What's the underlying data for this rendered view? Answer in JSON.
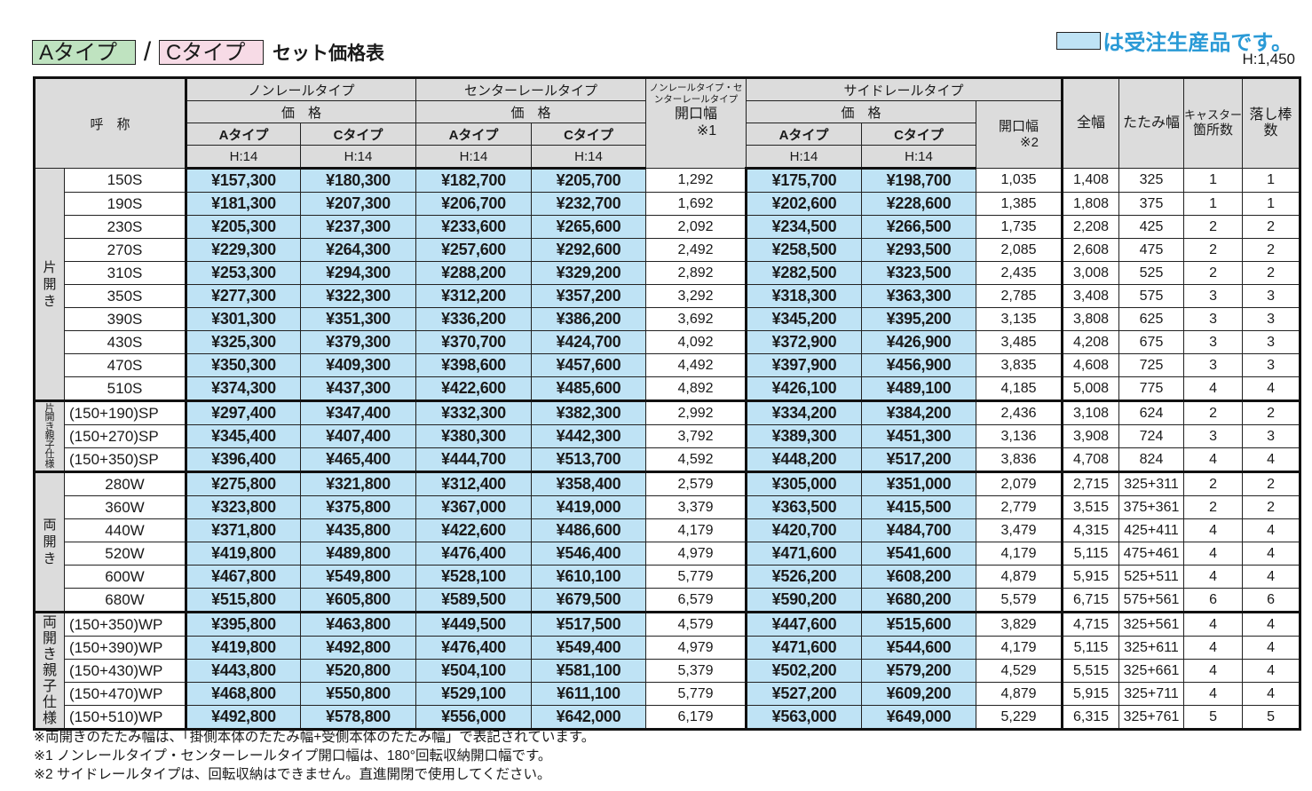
{
  "header": {
    "type_a_label": "Aタイプ",
    "slash": "/",
    "type_c_label": "Cタイプ",
    "title": "セット価格表",
    "legend_text": "は受注生産品です。",
    "height_note": "H:1,450",
    "colors": {
      "type_a_badge": "#bfe3c0",
      "type_c_badge": "#f7dbe6",
      "made_to_order": "#bfe3f5",
      "legend_text": "#2a9ad6",
      "header_bg": "#dcdcdc"
    }
  },
  "table": {
    "columns": {
      "name": "呼　称",
      "nonrail": "ノンレールタイプ",
      "center": "センターレールタイプ",
      "opening1_top": "ノンレールタイプ・センターレールタイプ",
      "opening1": "開口幅",
      "opening1_note": "※1",
      "side": "サイドレールタイプ",
      "price": "価　格",
      "type_a": "Aタイプ",
      "type_c": "Cタイプ",
      "h14": "H:14",
      "opening2": "開口幅",
      "opening2_note": "※2",
      "total_width": "全幅",
      "folded_width": "たたみ幅",
      "casters_1": "キャスター",
      "casters_2": "箇所数",
      "bars_1": "落し棒",
      "bars_2": "数"
    },
    "groups": [
      {
        "label": "片開き",
        "rows": [
          {
            "name": "150S",
            "nonA": "¥157,300",
            "nonC": "¥180,300",
            "cenA": "¥182,700",
            "cenC": "¥205,700",
            "open1": "1,292",
            "sideA": "¥175,700",
            "sideC": "¥198,700",
            "open2": "1,035",
            "total": "1,408",
            "fold": "325",
            "casters": "1",
            "bars": "1"
          },
          {
            "name": "190S",
            "nonA": "¥181,300",
            "nonC": "¥207,300",
            "cenA": "¥206,700",
            "cenC": "¥232,700",
            "open1": "1,692",
            "sideA": "¥202,600",
            "sideC": "¥228,600",
            "open2": "1,385",
            "total": "1,808",
            "fold": "375",
            "casters": "1",
            "bars": "1"
          },
          {
            "name": "230S",
            "nonA": "¥205,300",
            "nonC": "¥237,300",
            "cenA": "¥233,600",
            "cenC": "¥265,600",
            "open1": "2,092",
            "sideA": "¥234,500",
            "sideC": "¥266,500",
            "open2": "1,735",
            "total": "2,208",
            "fold": "425",
            "casters": "2",
            "bars": "2"
          },
          {
            "name": "270S",
            "nonA": "¥229,300",
            "nonC": "¥264,300",
            "cenA": "¥257,600",
            "cenC": "¥292,600",
            "open1": "2,492",
            "sideA": "¥258,500",
            "sideC": "¥293,500",
            "open2": "2,085",
            "total": "2,608",
            "fold": "475",
            "casters": "2",
            "bars": "2"
          },
          {
            "name": "310S",
            "nonA": "¥253,300",
            "nonC": "¥294,300",
            "cenA": "¥288,200",
            "cenC": "¥329,200",
            "open1": "2,892",
            "sideA": "¥282,500",
            "sideC": "¥323,500",
            "open2": "2,435",
            "total": "3,008",
            "fold": "525",
            "casters": "2",
            "bars": "2"
          },
          {
            "name": "350S",
            "nonA": "¥277,300",
            "nonC": "¥322,300",
            "cenA": "¥312,200",
            "cenC": "¥357,200",
            "open1": "3,292",
            "sideA": "¥318,300",
            "sideC": "¥363,300",
            "open2": "2,785",
            "total": "3,408",
            "fold": "575",
            "casters": "3",
            "bars": "3"
          },
          {
            "name": "390S",
            "nonA": "¥301,300",
            "nonC": "¥351,300",
            "cenA": "¥336,200",
            "cenC": "¥386,200",
            "open1": "3,692",
            "sideA": "¥345,200",
            "sideC": "¥395,200",
            "open2": "3,135",
            "total": "3,808",
            "fold": "625",
            "casters": "3",
            "bars": "3"
          },
          {
            "name": "430S",
            "nonA": "¥325,300",
            "nonC": "¥379,300",
            "cenA": "¥370,700",
            "cenC": "¥424,700",
            "open1": "4,092",
            "sideA": "¥372,900",
            "sideC": "¥426,900",
            "open2": "3,485",
            "total": "4,208",
            "fold": "675",
            "casters": "3",
            "bars": "3"
          },
          {
            "name": "470S",
            "nonA": "¥350,300",
            "nonC": "¥409,300",
            "cenA": "¥398,600",
            "cenC": "¥457,600",
            "open1": "4,492",
            "sideA": "¥397,900",
            "sideC": "¥456,900",
            "open2": "3,835",
            "total": "4,608",
            "fold": "725",
            "casters": "3",
            "bars": "3"
          },
          {
            "name": "510S",
            "nonA": "¥374,300",
            "nonC": "¥437,300",
            "cenA": "¥422,600",
            "cenC": "¥485,600",
            "open1": "4,892",
            "sideA": "¥426,100",
            "sideC": "¥489,100",
            "open2": "4,185",
            "total": "5,008",
            "fold": "775",
            "casters": "4",
            "bars": "4"
          }
        ]
      },
      {
        "label": "片開き親子仕様",
        "rows": [
          {
            "name": "(150+190)SP",
            "nonA": "¥297,400",
            "nonC": "¥347,400",
            "cenA": "¥332,300",
            "cenC": "¥382,300",
            "open1": "2,992",
            "sideA": "¥334,200",
            "sideC": "¥384,200",
            "open2": "2,436",
            "total": "3,108",
            "fold": "624",
            "casters": "2",
            "bars": "2"
          },
          {
            "name": "(150+270)SP",
            "nonA": "¥345,400",
            "nonC": "¥407,400",
            "cenA": "¥380,300",
            "cenC": "¥442,300",
            "open1": "3,792",
            "sideA": "¥389,300",
            "sideC": "¥451,300",
            "open2": "3,136",
            "total": "3,908",
            "fold": "724",
            "casters": "3",
            "bars": "3"
          },
          {
            "name": "(150+350)SP",
            "nonA": "¥396,400",
            "nonC": "¥465,400",
            "cenA": "¥444,700",
            "cenC": "¥513,700",
            "open1": "4,592",
            "sideA": "¥448,200",
            "sideC": "¥517,200",
            "open2": "3,836",
            "total": "4,708",
            "fold": "824",
            "casters": "4",
            "bars": "4"
          }
        ]
      },
      {
        "label": "両開き",
        "rows": [
          {
            "name": "280W",
            "nonA": "¥275,800",
            "nonC": "¥321,800",
            "cenA": "¥312,400",
            "cenC": "¥358,400",
            "open1": "2,579",
            "sideA": "¥305,000",
            "sideC": "¥351,000",
            "open2": "2,079",
            "total": "2,715",
            "fold": "325+311",
            "casters": "2",
            "bars": "2"
          },
          {
            "name": "360W",
            "nonA": "¥323,800",
            "nonC": "¥375,800",
            "cenA": "¥367,000",
            "cenC": "¥419,000",
            "open1": "3,379",
            "sideA": "¥363,500",
            "sideC": "¥415,500",
            "open2": "2,779",
            "total": "3,515",
            "fold": "375+361",
            "casters": "2",
            "bars": "2"
          },
          {
            "name": "440W",
            "nonA": "¥371,800",
            "nonC": "¥435,800",
            "cenA": "¥422,600",
            "cenC": "¥486,600",
            "open1": "4,179",
            "sideA": "¥420,700",
            "sideC": "¥484,700",
            "open2": "3,479",
            "total": "4,315",
            "fold": "425+411",
            "casters": "4",
            "bars": "4"
          },
          {
            "name": "520W",
            "nonA": "¥419,800",
            "nonC": "¥489,800",
            "cenA": "¥476,400",
            "cenC": "¥546,400",
            "open1": "4,979",
            "sideA": "¥471,600",
            "sideC": "¥541,600",
            "open2": "4,179",
            "total": "5,115",
            "fold": "475+461",
            "casters": "4",
            "bars": "4"
          },
          {
            "name": "600W",
            "nonA": "¥467,800",
            "nonC": "¥549,800",
            "cenA": "¥528,100",
            "cenC": "¥610,100",
            "open1": "5,779",
            "sideA": "¥526,200",
            "sideC": "¥608,200",
            "open2": "4,879",
            "total": "5,915",
            "fold": "525+511",
            "casters": "4",
            "bars": "4"
          },
          {
            "name": "680W",
            "nonA": "¥515,800",
            "nonC": "¥605,800",
            "cenA": "¥589,500",
            "cenC": "¥679,500",
            "open1": "6,579",
            "sideA": "¥590,200",
            "sideC": "¥680,200",
            "open2": "5,579",
            "total": "6,715",
            "fold": "575+561",
            "casters": "6",
            "bars": "6"
          }
        ]
      },
      {
        "label": "両開き親子仕様",
        "rows": [
          {
            "name": "(150+350)WP",
            "nonA": "¥395,800",
            "nonC": "¥463,800",
            "cenA": "¥449,500",
            "cenC": "¥517,500",
            "open1": "4,579",
            "sideA": "¥447,600",
            "sideC": "¥515,600",
            "open2": "3,829",
            "total": "4,715",
            "fold": "325+561",
            "casters": "4",
            "bars": "4"
          },
          {
            "name": "(150+390)WP",
            "nonA": "¥419,800",
            "nonC": "¥492,800",
            "cenA": "¥476,400",
            "cenC": "¥549,400",
            "open1": "4,979",
            "sideA": "¥471,600",
            "sideC": "¥544,600",
            "open2": "4,179",
            "total": "5,115",
            "fold": "325+611",
            "casters": "4",
            "bars": "4"
          },
          {
            "name": "(150+430)WP",
            "nonA": "¥443,800",
            "nonC": "¥520,800",
            "cenA": "¥504,100",
            "cenC": "¥581,100",
            "open1": "5,379",
            "sideA": "¥502,200",
            "sideC": "¥579,200",
            "open2": "4,529",
            "total": "5,515",
            "fold": "325+661",
            "casters": "4",
            "bars": "4"
          },
          {
            "name": "(150+470)WP",
            "nonA": "¥468,800",
            "nonC": "¥550,800",
            "cenA": "¥529,100",
            "cenC": "¥611,100",
            "open1": "5,779",
            "sideA": "¥527,200",
            "sideC": "¥609,200",
            "open2": "4,879",
            "total": "5,915",
            "fold": "325+711",
            "casters": "4",
            "bars": "4"
          },
          {
            "name": "(150+510)WP",
            "nonA": "¥492,800",
            "nonC": "¥578,800",
            "cenA": "¥556,000",
            "cenC": "¥642,000",
            "open1": "6,179",
            "sideA": "¥563,000",
            "sideC": "¥649,000",
            "open2": "5,229",
            "total": "6,315",
            "fold": "325+761",
            "casters": "5",
            "bars": "5"
          }
        ]
      }
    ]
  },
  "notes": [
    "※両開きのたたみ幅は、「掛側本体のたたみ幅+受側本体のたたみ幅」で表記されています。",
    "※1 ノンレールタイプ・センターレールタイプ開口幅は、180°回転収納開口幅です。",
    "※2 サイドレールタイプは、回転収納はできません。直進開閉で使用してください。"
  ]
}
